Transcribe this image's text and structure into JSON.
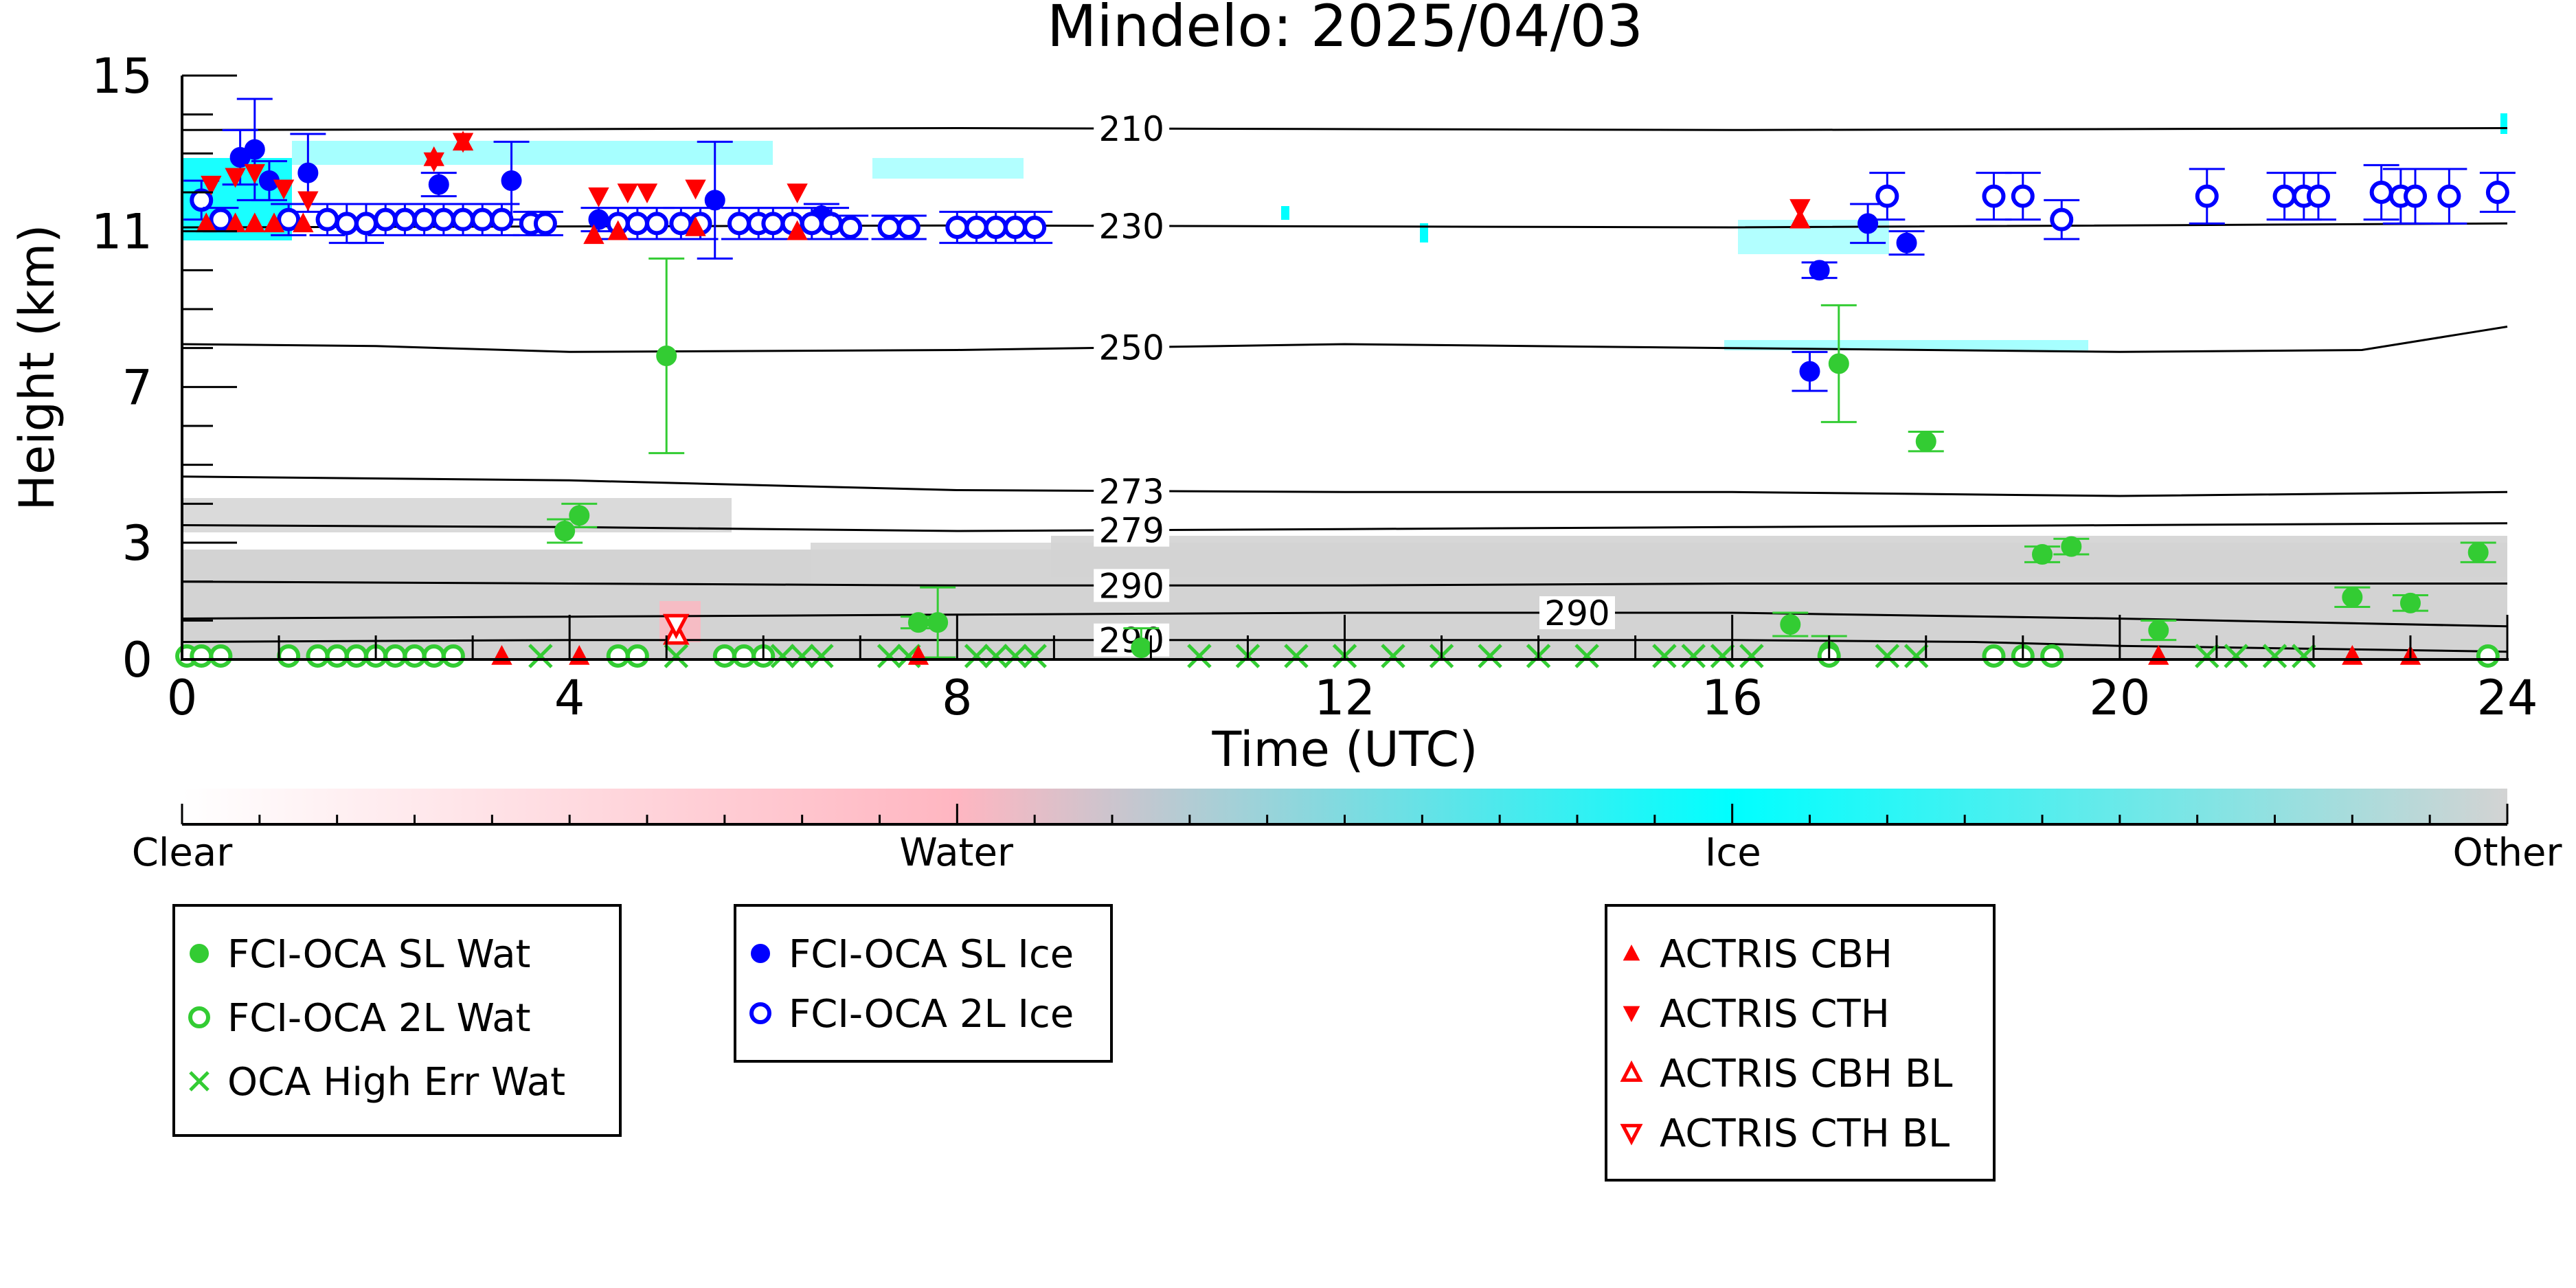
{
  "chart_data": {
    "type": "scatter",
    "title": "Mindelo: 2025/04/03",
    "xlabel": "Time (UTC)",
    "ylabel": "Height (km)",
    "xlim": [
      0,
      24
    ],
    "ylim": [
      0,
      15
    ],
    "x_ticks": [
      0,
      4,
      8,
      12,
      16,
      20,
      24
    ],
    "y_ticks": [
      0,
      3,
      7,
      11,
      15
    ],
    "grid": false,
    "colorbar": {
      "labels": [
        {
          "text": "Clear",
          "at": 0.0
        },
        {
          "text": "Water",
          "at": 0.333
        },
        {
          "text": "Ice",
          "at": 0.667
        },
        {
          "text": "Other",
          "at": 1.0
        }
      ],
      "stops": [
        {
          "at": 0.0,
          "color": "#ffffff"
        },
        {
          "at": 0.333,
          "color": "#ffb6c1"
        },
        {
          "at": 0.667,
          "color": "#00ffff"
        },
        {
          "at": 1.0,
          "color": "#d3d3d3"
        }
      ]
    },
    "temperature_contours": [
      {
        "label": "210",
        "label_x": 9.8,
        "points": [
          [
            0,
            13.6
          ],
          [
            8,
            13.65
          ],
          [
            16,
            13.6
          ],
          [
            24,
            13.65
          ]
        ]
      },
      {
        "label": "230",
        "label_x": 9.8,
        "points": [
          [
            0,
            11.1
          ],
          [
            8,
            11.15
          ],
          [
            16,
            11.1
          ],
          [
            24,
            11.2
          ]
        ]
      },
      {
        "label": "250",
        "label_x": 9.8,
        "points": [
          [
            0,
            8.1
          ],
          [
            2,
            8.05
          ],
          [
            4,
            7.9
          ],
          [
            8,
            7.95
          ],
          [
            12,
            8.1
          ],
          [
            16,
            8.0
          ],
          [
            20,
            7.9
          ],
          [
            22.5,
            7.95
          ],
          [
            23.5,
            8.35
          ],
          [
            24,
            8.55
          ]
        ]
      },
      {
        "label": "273",
        "label_x": 9.8,
        "points": [
          [
            0,
            4.7
          ],
          [
            4,
            4.6
          ],
          [
            8,
            4.35
          ],
          [
            12,
            4.3
          ],
          [
            16,
            4.3
          ],
          [
            20,
            4.2
          ],
          [
            24,
            4.3
          ]
        ]
      },
      {
        "label": "279",
        "label_x": 9.8,
        "points": [
          [
            0,
            3.45
          ],
          [
            4,
            3.4
          ],
          [
            8,
            3.3
          ],
          [
            12,
            3.35
          ],
          [
            16,
            3.4
          ],
          [
            20,
            3.45
          ],
          [
            24,
            3.5
          ]
        ]
      },
      {
        "label": "290",
        "label_x": 9.8,
        "points": [
          [
            0,
            2.0
          ],
          [
            4,
            1.95
          ],
          [
            8,
            1.9
          ],
          [
            12,
            1.9
          ],
          [
            16,
            1.95
          ],
          [
            20,
            1.95
          ],
          [
            24,
            1.95
          ]
        ]
      },
      {
        "label": "290",
        "label_x": 14.4,
        "points": [
          [
            0,
            1.05
          ],
          [
            4,
            1.1
          ],
          [
            8,
            1.15
          ],
          [
            12,
            1.2
          ],
          [
            16,
            1.2
          ],
          [
            20,
            1.05
          ],
          [
            24,
            0.85
          ]
        ]
      },
      {
        "label": "290",
        "label_x": 9.8,
        "points": [
          [
            0,
            0.45
          ],
          [
            4,
            0.5
          ],
          [
            8,
            0.5
          ],
          [
            12,
            0.5
          ],
          [
            16,
            0.5
          ],
          [
            18.5,
            0.45
          ],
          [
            20,
            0.35
          ],
          [
            24,
            0.2
          ]
        ]
      }
    ],
    "series": [
      {
        "name": "FCI-OCA SL Wat",
        "marker": "filled-circle",
        "color": "#33cc33",
        "points": [
          {
            "x": 3.95,
            "y": 3.3,
            "err": 0.3
          },
          {
            "x": 4.1,
            "y": 3.7,
            "err": 0.3
          },
          {
            "x": 5.0,
            "y": 7.8,
            "err": 2.5
          },
          {
            "x": 7.6,
            "y": 0.95,
            "err": 0.15
          },
          {
            "x": 7.8,
            "y": 0.95,
            "err": 0.9
          },
          {
            "x": 9.9,
            "y": 0.3,
            "err": 0.5
          },
          {
            "x": 16.6,
            "y": 0.9,
            "err": 0.3
          },
          {
            "x": 17.1,
            "y": 7.6,
            "err": 1.5
          },
          {
            "x": 17.0,
            "y": 0.2,
            "err": 0.4
          },
          {
            "x": 18.0,
            "y": 5.6,
            "err": 0.25
          },
          {
            "x": 19.2,
            "y": 2.7,
            "err": 0.2
          },
          {
            "x": 19.5,
            "y": 2.9,
            "err": 0.2
          },
          {
            "x": 20.4,
            "y": 0.75,
            "err": 0.25
          },
          {
            "x": 22.4,
            "y": 1.6,
            "err": 0.25
          },
          {
            "x": 23.0,
            "y": 1.45,
            "err": 0.2
          },
          {
            "x": 23.7,
            "y": 2.75,
            "err": 0.25
          }
        ]
      },
      {
        "name": "FCI-OCA 2L Wat",
        "marker": "open-circle",
        "color": "#33cc33",
        "points": [
          {
            "x": 0.05,
            "y": 0.05
          },
          {
            "x": 0.2,
            "y": 0.05
          },
          {
            "x": 0.4,
            "y": 0.05
          },
          {
            "x": 1.1,
            "y": 0.05
          },
          {
            "x": 1.4,
            "y": 0.05
          },
          {
            "x": 1.6,
            "y": 0.05
          },
          {
            "x": 1.8,
            "y": 0.05
          },
          {
            "x": 2.0,
            "y": 0.05
          },
          {
            "x": 2.2,
            "y": 0.05
          },
          {
            "x": 2.4,
            "y": 0.05
          },
          {
            "x": 2.6,
            "y": 0.05
          },
          {
            "x": 2.8,
            "y": 0.05
          },
          {
            "x": 4.5,
            "y": 0.05
          },
          {
            "x": 4.7,
            "y": 0.05
          },
          {
            "x": 5.6,
            "y": 0.05
          },
          {
            "x": 5.8,
            "y": 0.05
          },
          {
            "x": 6.0,
            "y": 0.05
          },
          {
            "x": 17.0,
            "y": 0.05
          },
          {
            "x": 18.7,
            "y": 0.05
          },
          {
            "x": 19.0,
            "y": 0.05
          },
          {
            "x": 19.3,
            "y": 0.05
          },
          {
            "x": 23.8,
            "y": 0.05
          }
        ]
      },
      {
        "name": "OCA High Err Wat",
        "marker": "x",
        "color": "#33cc33",
        "points": [
          {
            "x": 3.7,
            "y": 0.05
          },
          {
            "x": 5.1,
            "y": 0.05
          },
          {
            "x": 6.2,
            "y": 0.05
          },
          {
            "x": 6.4,
            "y": 0.05
          },
          {
            "x": 6.6,
            "y": 0.05
          },
          {
            "x": 7.3,
            "y": 0.05
          },
          {
            "x": 7.5,
            "y": 0.05
          },
          {
            "x": 8.2,
            "y": 0.05
          },
          {
            "x": 8.4,
            "y": 0.05
          },
          {
            "x": 8.6,
            "y": 0.05
          },
          {
            "x": 8.8,
            "y": 0.05
          },
          {
            "x": 10.5,
            "y": 0.05
          },
          {
            "x": 11.0,
            "y": 0.05
          },
          {
            "x": 11.5,
            "y": 0.05
          },
          {
            "x": 12.0,
            "y": 0.05
          },
          {
            "x": 12.5,
            "y": 0.05
          },
          {
            "x": 13.0,
            "y": 0.05
          },
          {
            "x": 13.5,
            "y": 0.05
          },
          {
            "x": 14.0,
            "y": 0.05
          },
          {
            "x": 14.5,
            "y": 0.05
          },
          {
            "x": 15.3,
            "y": 0.05
          },
          {
            "x": 15.6,
            "y": 0.05
          },
          {
            "x": 15.9,
            "y": 0.05
          },
          {
            "x": 16.2,
            "y": 0.05
          },
          {
            "x": 17.6,
            "y": 0.05
          },
          {
            "x": 17.9,
            "y": 0.05
          },
          {
            "x": 20.9,
            "y": 0.05
          },
          {
            "x": 21.2,
            "y": 0.05
          },
          {
            "x": 21.6,
            "y": 0.05
          },
          {
            "x": 21.9,
            "y": 0.05
          }
        ]
      },
      {
        "name": "FCI-OCA SL Ice",
        "marker": "filled-circle",
        "color": "#0000ff",
        "points": [
          {
            "x": 0.6,
            "y": 12.9,
            "err": 0.7
          },
          {
            "x": 0.75,
            "y": 13.1,
            "err": 1.3
          },
          {
            "x": 0.9,
            "y": 12.3,
            "err": 0.5
          },
          {
            "x": 1.3,
            "y": 12.5,
            "err": 1.0
          },
          {
            "x": 2.65,
            "y": 12.2,
            "err": 0.3
          },
          {
            "x": 3.4,
            "y": 12.3,
            "err": 1.0
          },
          {
            "x": 4.3,
            "y": 11.3,
            "err": 0.3
          },
          {
            "x": 5.5,
            "y": 11.8,
            "err": 1.5
          },
          {
            "x": 6.6,
            "y": 11.4,
            "err": 0.3
          },
          {
            "x": 16.8,
            "y": 7.4,
            "err": 0.5
          },
          {
            "x": 16.9,
            "y": 10.0,
            "err": 0.2
          },
          {
            "x": 17.4,
            "y": 11.2,
            "err": 0.5
          },
          {
            "x": 17.8,
            "y": 10.7,
            "err": 0.3
          }
        ]
      },
      {
        "name": "FCI-OCA 2L Ice",
        "marker": "open-circle",
        "color": "#0000ff",
        "points": [
          {
            "x": 0.2,
            "y": 11.8,
            "err": 0.5
          },
          {
            "x": 0.4,
            "y": 11.3,
            "err": 0.3
          },
          {
            "x": 1.1,
            "y": 11.3,
            "err": 0.4
          },
          {
            "x": 1.5,
            "y": 11.3,
            "err": 0.4
          },
          {
            "x": 1.7,
            "y": 11.2,
            "err": 0.5
          },
          {
            "x": 1.9,
            "y": 11.2,
            "err": 0.5
          },
          {
            "x": 2.1,
            "y": 11.3,
            "err": 0.4
          },
          {
            "x": 2.3,
            "y": 11.3,
            "err": 0.4
          },
          {
            "x": 2.5,
            "y": 11.3,
            "err": 0.4
          },
          {
            "x": 2.7,
            "y": 11.3,
            "err": 0.4
          },
          {
            "x": 2.9,
            "y": 11.3,
            "err": 0.4
          },
          {
            "x": 3.1,
            "y": 11.3,
            "err": 0.4
          },
          {
            "x": 3.3,
            "y": 11.3,
            "err": 0.4
          },
          {
            "x": 3.6,
            "y": 11.2,
            "err": 0.3
          },
          {
            "x": 3.75,
            "y": 11.2,
            "err": 0.3
          },
          {
            "x": 4.5,
            "y": 11.2,
            "err": 0.4
          },
          {
            "x": 4.7,
            "y": 11.2,
            "err": 0.4
          },
          {
            "x": 4.9,
            "y": 11.2,
            "err": 0.4
          },
          {
            "x": 5.15,
            "y": 11.2,
            "err": 0.4
          },
          {
            "x": 5.35,
            "y": 11.2,
            "err": 0.4
          },
          {
            "x": 5.75,
            "y": 11.2,
            "err": 0.4
          },
          {
            "x": 5.95,
            "y": 11.2,
            "err": 0.4
          },
          {
            "x": 6.1,
            "y": 11.2,
            "err": 0.4
          },
          {
            "x": 6.3,
            "y": 11.2,
            "err": 0.4
          },
          {
            "x": 6.5,
            "y": 11.2,
            "err": 0.4
          },
          {
            "x": 6.7,
            "y": 11.2,
            "err": 0.4
          },
          {
            "x": 6.9,
            "y": 11.1,
            "err": 0.3
          },
          {
            "x": 7.3,
            "y": 11.1,
            "err": 0.3
          },
          {
            "x": 7.5,
            "y": 11.1,
            "err": 0.3
          },
          {
            "x": 8.0,
            "y": 11.1,
            "err": 0.4
          },
          {
            "x": 8.2,
            "y": 11.1,
            "err": 0.4
          },
          {
            "x": 8.4,
            "y": 11.1,
            "err": 0.4
          },
          {
            "x": 8.6,
            "y": 11.1,
            "err": 0.4
          },
          {
            "x": 8.8,
            "y": 11.1,
            "err": 0.4
          },
          {
            "x": 17.6,
            "y": 11.9,
            "err": 0.6
          },
          {
            "x": 18.7,
            "y": 11.9,
            "err": 0.6
          },
          {
            "x": 19.0,
            "y": 11.9,
            "err": 0.6
          },
          {
            "x": 19.4,
            "y": 11.3,
            "err": 0.5
          },
          {
            "x": 20.9,
            "y": 11.9,
            "err": 0.7
          },
          {
            "x": 21.7,
            "y": 11.9,
            "err": 0.6
          },
          {
            "x": 21.9,
            "y": 11.9,
            "err": 0.6
          },
          {
            "x": 22.05,
            "y": 11.9,
            "err": 0.6
          },
          {
            "x": 22.7,
            "y": 12.0,
            "err": 0.7
          },
          {
            "x": 22.9,
            "y": 11.9,
            "err": 0.7
          },
          {
            "x": 23.05,
            "y": 11.9,
            "err": 0.7
          },
          {
            "x": 23.4,
            "y": 11.9,
            "err": 0.7
          },
          {
            "x": 23.9,
            "y": 12.0,
            "err": 0.5
          }
        ]
      },
      {
        "name": "ACTRIS CBH",
        "marker": "triangle-up",
        "color": "#ff0000",
        "points": [
          {
            "x": 0.25,
            "y": 11.2
          },
          {
            "x": 0.55,
            "y": 11.2
          },
          {
            "x": 0.75,
            "y": 11.2
          },
          {
            "x": 0.95,
            "y": 11.2
          },
          {
            "x": 1.25,
            "y": 11.2
          },
          {
            "x": 2.6,
            "y": 12.9
          },
          {
            "x": 2.9,
            "y": 13.3
          },
          {
            "x": 4.25,
            "y": 10.9
          },
          {
            "x": 4.5,
            "y": 11.0
          },
          {
            "x": 5.3,
            "y": 11.1
          },
          {
            "x": 6.35,
            "y": 11.0
          },
          {
            "x": 16.7,
            "y": 11.3
          },
          {
            "x": 3.3,
            "y": 0.05
          },
          {
            "x": 4.1,
            "y": 0.05
          },
          {
            "x": 7.6,
            "y": 0.05
          },
          {
            "x": 20.4,
            "y": 0.05
          },
          {
            "x": 22.4,
            "y": 0.05
          },
          {
            "x": 23.0,
            "y": 0.05
          }
        ]
      },
      {
        "name": "ACTRIS CTH",
        "marker": "triangle-down",
        "color": "#ff0000",
        "points": [
          {
            "x": 0.3,
            "y": 12.2
          },
          {
            "x": 0.55,
            "y": 12.4
          },
          {
            "x": 0.75,
            "y": 12.5
          },
          {
            "x": 1.05,
            "y": 12.1
          },
          {
            "x": 1.3,
            "y": 11.8
          },
          {
            "x": 2.6,
            "y": 12.8
          },
          {
            "x": 2.9,
            "y": 13.3
          },
          {
            "x": 4.3,
            "y": 11.9
          },
          {
            "x": 4.6,
            "y": 12.0
          },
          {
            "x": 4.8,
            "y": 12.0
          },
          {
            "x": 5.3,
            "y": 12.1
          },
          {
            "x": 6.35,
            "y": 12.0
          },
          {
            "x": 16.7,
            "y": 11.6
          }
        ]
      },
      {
        "name": "ACTRIS CBH BL",
        "marker": "open-triangle-up",
        "color": "#ff0000",
        "points": [
          {
            "x": 5.1,
            "y": 0.65
          }
        ]
      },
      {
        "name": "ACTRIS CTH BL",
        "marker": "open-triangle-down",
        "color": "#ff0000",
        "points": [
          {
            "x": 5.1,
            "y": 0.9
          }
        ]
      }
    ],
    "legend_groups": [
      [
        "FCI-OCA SL Wat",
        "FCI-OCA 2L Wat",
        "OCA High Err Wat"
      ],
      [
        "FCI-OCA SL Ice",
        "FCI-OCA 2L Ice"
      ],
      [
        "ACTRIS CBH",
        "ACTRIS CTH",
        "ACTRIS CBH BL",
        "ACTRIS CTH BL"
      ]
    ]
  }
}
